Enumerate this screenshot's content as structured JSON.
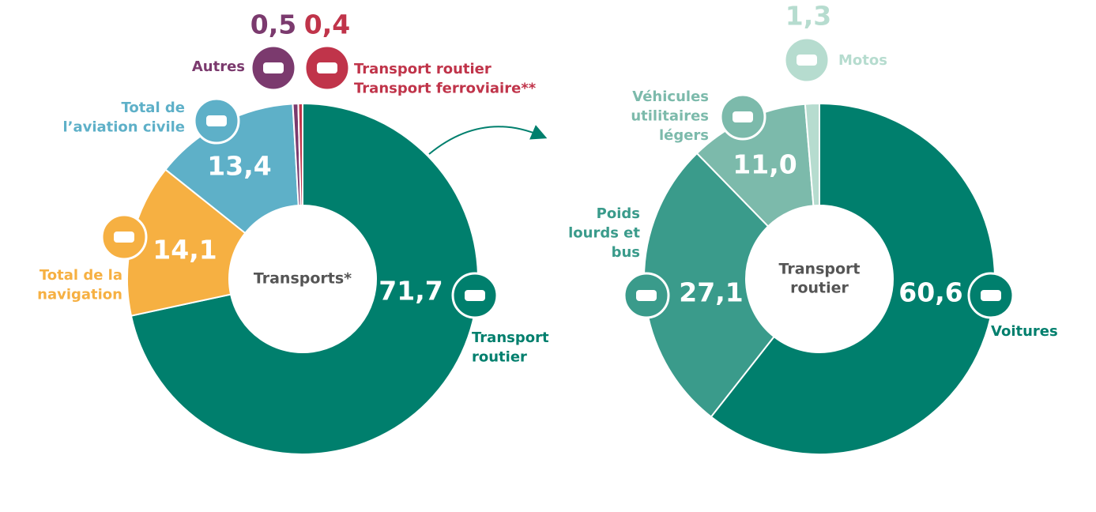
{
  "chart_data": [
    {
      "type": "pie",
      "center_label": [
        "Transports*"
      ],
      "categories": [
        [
          "Transport",
          "routier"
        ],
        [
          "Total de la",
          "navigation"
        ],
        [
          "Total de",
          "l’aviation civile"
        ],
        [
          "Autres"
        ],
        [
          "Transport routier",
          "Transport ferroviaire**"
        ]
      ],
      "values": [
        71.7,
        14.1,
        13.4,
        0.5,
        0.4
      ],
      "value_labels": [
        "71,7",
        "14,1",
        "13,4",
        "0,5",
        "0,4"
      ],
      "colors": [
        "#007f6d",
        "#f6b042",
        "#5eb0c8",
        "#7b3a6e",
        "#c0344a"
      ]
    },
    {
      "type": "pie",
      "center_label": [
        "Transport",
        "routier"
      ],
      "categories": [
        [
          "Voitures"
        ],
        [
          "Poids",
          "lourds et",
          "bus"
        ],
        [
          "Véhicules",
          "utilitaires",
          "légers"
        ],
        [
          "Motos"
        ]
      ],
      "values": [
        60.6,
        27.1,
        11.0,
        1.3
      ],
      "value_labels": [
        "60,6",
        "27,1",
        "11,0",
        "1,3"
      ],
      "colors": [
        "#007f6d",
        "#3a9b8b",
        "#7cbaab",
        "#b6dccf"
      ]
    }
  ]
}
